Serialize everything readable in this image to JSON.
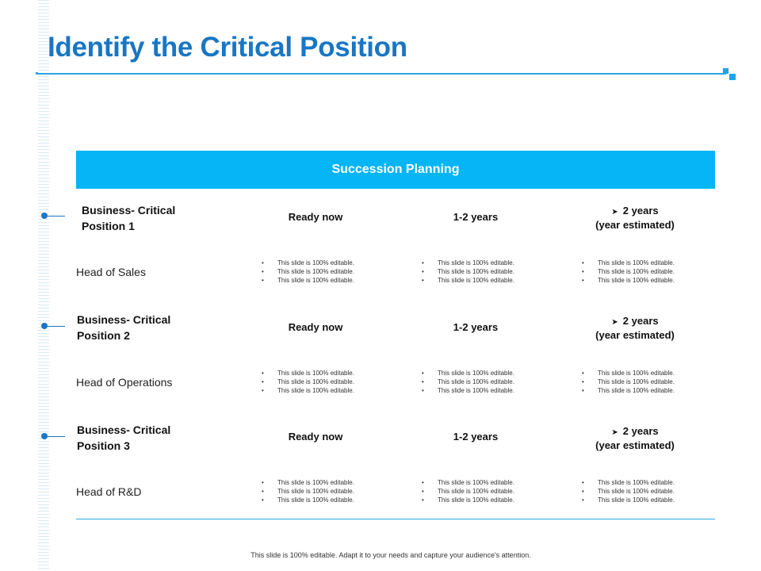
{
  "slide": {
    "title": "Identify the Critical Position",
    "header": "Succession Planning",
    "footer": "This slide is 100% editable. Adapt it to your needs and capture your audience's attention."
  },
  "colors": {
    "title": "#1976c4",
    "header_bg": "#05b5f5",
    "rule": "#2aa6e0"
  },
  "rows": [
    {
      "position_line1": "Business- Critical",
      "position_line2": "Position 1",
      "ready": "Ready now",
      "years": "1-2 years",
      "estimate_line1": "2 years",
      "estimate_line2": "(year estimated)",
      "role": "Head of Sales",
      "bullets": [
        "This slide is 100% editable.",
        "This slide is 100% editable.",
        "This slide is 100% editable."
      ]
    },
    {
      "position_line1": "Business- Critical",
      "position_line2": "Position 2",
      "ready": "Ready now",
      "years": "1-2 years",
      "estimate_line1": "2 years",
      "estimate_line2": "(year estimated)",
      "role": "Head of Operations",
      "bullets": [
        "This slide is 100% editable.",
        "This slide is 100% editable.",
        "This slide is 100% editable."
      ]
    },
    {
      "position_line1": "Business- Critical",
      "position_line2": "Position 3",
      "ready": "Ready now",
      "years": "1-2 years",
      "estimate_line1": "2 years",
      "estimate_line2": "(year estimated)",
      "role": "Head of R&D",
      "bullets": [
        "This slide is 100% editable.",
        "This slide is 100% editable.",
        "This slide is 100% editable."
      ]
    }
  ]
}
